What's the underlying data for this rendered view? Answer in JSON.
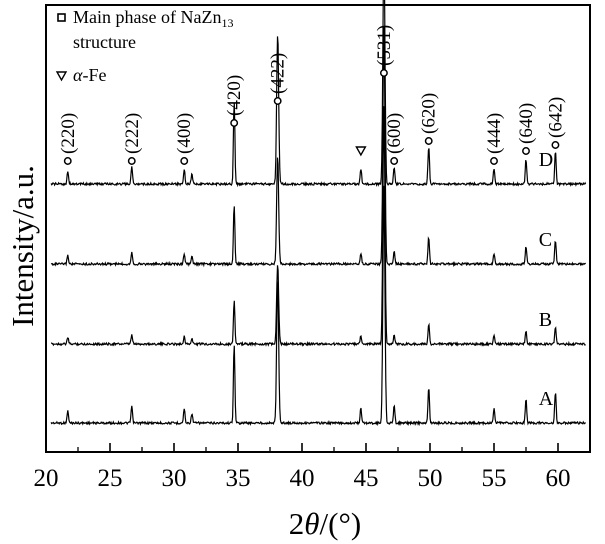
{
  "chart_data": {
    "type": "line",
    "xlabel_prefix": "2",
    "xlabel_symbol": "θ",
    "xlabel_suffix": "/(°)",
    "ylabel": "Intensity/a.u.",
    "xlim": [
      20,
      62.5
    ],
    "xticks": [
      20,
      25,
      30,
      35,
      40,
      45,
      50,
      55,
      60
    ],
    "legend": [
      {
        "marker": "square",
        "text_main": "Main phase of NaZn",
        "text_sub": "13",
        "text_line2": "structure"
      },
      {
        "marker": "triangle",
        "text_symbol": "α",
        "text_main": "-Fe"
      }
    ],
    "series": [
      {
        "name": "A",
        "label_x": 58.5,
        "baseline": 0,
        "scale": 1.0
      },
      {
        "name": "B",
        "label_x": 58.5,
        "baseline": 1,
        "scale": 0.55
      },
      {
        "name": "C",
        "label_x": 58.5,
        "baseline": 2,
        "scale": 0.75
      },
      {
        "name": "D",
        "label_x": 58.5,
        "baseline": 3,
        "scale": 1.05
      }
    ],
    "peaks": [
      {
        "two_theta": 21.7,
        "intensity": 0.05,
        "hkl": "(220)",
        "phase": "NaZn13",
        "marker": "square"
      },
      {
        "two_theta": 26.7,
        "intensity": 0.07,
        "hkl": "(222)",
        "phase": "NaZn13",
        "marker": "square"
      },
      {
        "two_theta": 30.8,
        "intensity": 0.06,
        "hkl": "(400)",
        "phase": "NaZn13",
        "marker": "square"
      },
      {
        "two_theta": 31.4,
        "intensity": 0.04,
        "hkl": "",
        "phase": "NaZn13",
        "marker": ""
      },
      {
        "two_theta": 34.7,
        "intensity": 0.33,
        "hkl": "(420)",
        "phase": "NaZn13",
        "marker": "square"
      },
      {
        "two_theta": 38.1,
        "intensity": 0.6,
        "hkl": "(422)",
        "phase": "NaZn13",
        "marker": "square"
      },
      {
        "two_theta": 44.6,
        "intensity": 0.06,
        "hkl": "",
        "phase": "α-Fe",
        "marker": "triangle"
      },
      {
        "two_theta": 46.4,
        "intensity": 1.0,
        "hkl": "(531)",
        "phase": "NaZn13",
        "marker": "square"
      },
      {
        "two_theta": 47.2,
        "intensity": 0.07,
        "hkl": "(600)",
        "phase": "NaZn13",
        "marker": "square"
      },
      {
        "two_theta": 49.9,
        "intensity": 0.15,
        "hkl": "(620)",
        "phase": "NaZn13",
        "marker": "square"
      },
      {
        "two_theta": 55.0,
        "intensity": 0.06,
        "hkl": "(444)",
        "phase": "NaZn13",
        "marker": "square"
      },
      {
        "two_theta": 57.5,
        "intensity": 0.1,
        "hkl": "(640)",
        "phase": "NaZn13",
        "marker": "square"
      },
      {
        "two_theta": 59.8,
        "intensity": 0.13,
        "hkl": "(642)",
        "phase": "NaZn13",
        "marker": "square"
      }
    ],
    "grid": false,
    "legend_position": "top-left"
  }
}
